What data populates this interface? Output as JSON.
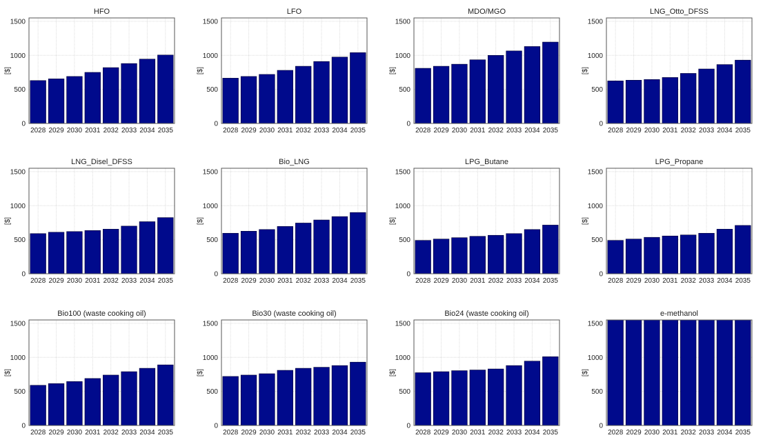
{
  "figure": {
    "ylabel": "[$]"
  },
  "style": {
    "bar_color": "#000a8c",
    "bar_edge": "#000033",
    "grid_color": "#dcdcdc",
    "axis_color": "#555555"
  },
  "chart_data": [
    {
      "type": "bar",
      "title": "HFO",
      "xlabel": "",
      "ylabel": "[$]",
      "categories": [
        "2028",
        "2029",
        "2030",
        "2031",
        "2032",
        "2033",
        "2034",
        "2035"
      ],
      "values": [
        630,
        655,
        690,
        750,
        820,
        880,
        945,
        1005
      ],
      "ylim": [
        0,
        1550
      ],
      "yticks": [
        0,
        500,
        1000,
        1500
      ],
      "grid": true
    },
    {
      "type": "bar",
      "title": "LFO",
      "xlabel": "",
      "ylabel": "[$]",
      "categories": [
        "2028",
        "2029",
        "2030",
        "2031",
        "2032",
        "2033",
        "2034",
        "2035"
      ],
      "values": [
        665,
        690,
        720,
        780,
        840,
        910,
        975,
        1040
      ],
      "ylim": [
        0,
        1550
      ],
      "yticks": [
        0,
        500,
        1000,
        1500
      ],
      "grid": true
    },
    {
      "type": "bar",
      "title": "MDO/MGO",
      "xlabel": "",
      "ylabel": "[$]",
      "categories": [
        "2028",
        "2029",
        "2030",
        "2031",
        "2032",
        "2033",
        "2034",
        "2035"
      ],
      "values": [
        810,
        840,
        870,
        935,
        1000,
        1065,
        1130,
        1195
      ],
      "ylim": [
        0,
        1550
      ],
      "yticks": [
        0,
        500,
        1000,
        1500
      ],
      "grid": true
    },
    {
      "type": "bar",
      "title": "LNG_Otto_DFSS",
      "xlabel": "",
      "ylabel": "[$]",
      "categories": [
        "2028",
        "2029",
        "2030",
        "2031",
        "2032",
        "2033",
        "2034",
        "2035"
      ],
      "values": [
        625,
        635,
        645,
        675,
        735,
        800,
        865,
        930
      ],
      "ylim": [
        0,
        1550
      ],
      "yticks": [
        0,
        500,
        1000,
        1500
      ],
      "grid": true
    },
    {
      "type": "bar",
      "title": "LNG_Disel_DFSS",
      "xlabel": "",
      "ylabel": "[$]",
      "categories": [
        "2028",
        "2029",
        "2030",
        "2031",
        "2032",
        "2033",
        "2034",
        "2035"
      ],
      "values": [
        590,
        610,
        620,
        635,
        655,
        700,
        765,
        825
      ],
      "ylim": [
        0,
        1550
      ],
      "yticks": [
        0,
        500,
        1000,
        1500
      ],
      "grid": true
    },
    {
      "type": "bar",
      "title": "Bio_LNG",
      "xlabel": "",
      "ylabel": "[$]",
      "categories": [
        "2028",
        "2029",
        "2030",
        "2031",
        "2032",
        "2033",
        "2034",
        "2035"
      ],
      "values": [
        595,
        625,
        650,
        695,
        745,
        790,
        840,
        900
      ],
      "ylim": [
        0,
        1550
      ],
      "yticks": [
        0,
        500,
        1000,
        1500
      ],
      "grid": true
    },
    {
      "type": "bar",
      "title": "LPG_Butane",
      "xlabel": "",
      "ylabel": "[$]",
      "categories": [
        "2028",
        "2029",
        "2030",
        "2031",
        "2032",
        "2033",
        "2034",
        "2035"
      ],
      "values": [
        490,
        510,
        530,
        550,
        565,
        590,
        650,
        715
      ],
      "ylim": [
        0,
        1550
      ],
      "yticks": [
        0,
        500,
        1000,
        1500
      ],
      "grid": true
    },
    {
      "type": "bar",
      "title": "LPG_Propane",
      "xlabel": "",
      "ylabel": "[$]",
      "categories": [
        "2028",
        "2029",
        "2030",
        "2031",
        "2032",
        "2033",
        "2034",
        "2035"
      ],
      "values": [
        490,
        510,
        535,
        555,
        570,
        595,
        655,
        710
      ],
      "ylim": [
        0,
        1550
      ],
      "yticks": [
        0,
        500,
        1000,
        1500
      ],
      "grid": true
    },
    {
      "type": "bar",
      "title": "Bio100 (waste cooking oil)",
      "xlabel": "",
      "ylabel": "[$]",
      "categories": [
        "2028",
        "2029",
        "2030",
        "2031",
        "2032",
        "2033",
        "2034",
        "2035"
      ],
      "values": [
        590,
        615,
        645,
        690,
        740,
        790,
        840,
        890
      ],
      "ylim": [
        0,
        1550
      ],
      "yticks": [
        0,
        500,
        1000,
        1500
      ],
      "grid": true
    },
    {
      "type": "bar",
      "title": "Bio30 (waste cooking oil)",
      "xlabel": "",
      "ylabel": "[$]",
      "categories": [
        "2028",
        "2029",
        "2030",
        "2031",
        "2032",
        "2033",
        "2034",
        "2035"
      ],
      "values": [
        720,
        740,
        760,
        810,
        840,
        855,
        880,
        930
      ],
      "ylim": [
        0,
        1550
      ],
      "yticks": [
        0,
        500,
        1000,
        1500
      ],
      "grid": true
    },
    {
      "type": "bar",
      "title": "Bio24 (waste cooking oil)",
      "xlabel": "",
      "ylabel": "[$]",
      "categories": [
        "2028",
        "2029",
        "2030",
        "2031",
        "2032",
        "2033",
        "2034",
        "2035"
      ],
      "values": [
        775,
        790,
        805,
        815,
        830,
        880,
        945,
        1010
      ],
      "ylim": [
        0,
        1550
      ],
      "yticks": [
        0,
        500,
        1000,
        1500
      ],
      "grid": true
    },
    {
      "type": "bar",
      "title": "e-methanol",
      "xlabel": "",
      "ylabel": "[$]",
      "categories": [
        "2028",
        "2029",
        "2030",
        "2031",
        "2032",
        "2033",
        "2034",
        "2035"
      ],
      "values": [
        1550,
        1550,
        1550,
        1550,
        1550,
        1550,
        1550,
        1550
      ],
      "ylim": [
        0,
        1550
      ],
      "yticks": [
        0,
        500,
        1000,
        1500
      ],
      "grid": true
    }
  ]
}
